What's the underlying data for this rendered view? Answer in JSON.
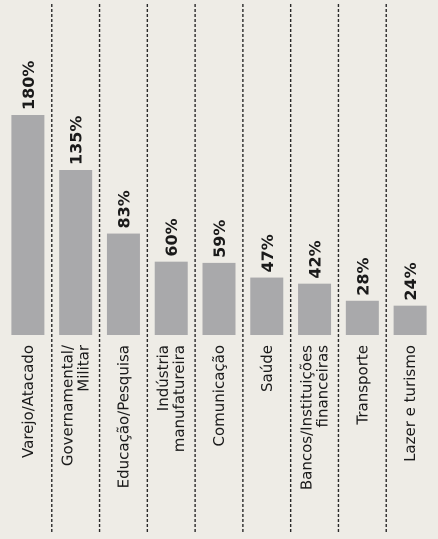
{
  "chart_data": {
    "type": "bar",
    "orientation": "vertical-bars-rotated-labels",
    "categories": [
      [
        "Varejo/Atacado"
      ],
      [
        "Governamental/",
        "Militar"
      ],
      [
        "Educação/Pesquisa"
      ],
      [
        "Indústria",
        "manufatureira"
      ],
      [
        "Comunicação"
      ],
      [
        "Saúde"
      ],
      [
        "Bancos/Instituições",
        "financeiras"
      ],
      [
        "Transporte"
      ],
      [
        "Lazer e turismo"
      ]
    ],
    "values": [
      180,
      135,
      83,
      60,
      59,
      47,
      42,
      28,
      24
    ],
    "value_labels": [
      "180%",
      "135%",
      "83%",
      "60%",
      "59%",
      "47%",
      "42%",
      "28%",
      "24%"
    ],
    "unit": "%",
    "ylim": [
      0,
      180
    ],
    "grid": false,
    "colors": {
      "bar": "#a9a9ab",
      "background": "#eeece6",
      "text": "#1a1a1a"
    }
  }
}
